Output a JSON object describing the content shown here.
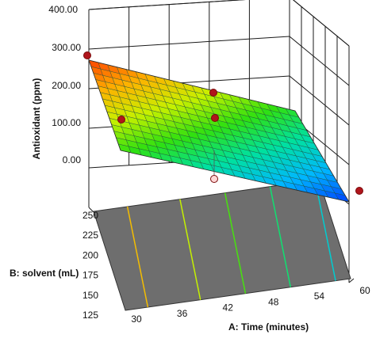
{
  "chart_data": {
    "type": "surface3d",
    "zlabel": "Antioxidant (ppm)",
    "xlabel": "A: Time (minutes)",
    "ylabel": "B: solvent (mL)",
    "z_ticks": [
      "0.00",
      "100.00",
      "200.00",
      "300.00",
      "400.00"
    ],
    "z_range": [
      0,
      400
    ],
    "x_ticks": [
      "30",
      "36",
      "42",
      "48",
      "54",
      "60"
    ],
    "x_range": [
      30,
      60
    ],
    "y_ticks": [
      "125",
      "150",
      "175",
      "200",
      "225",
      "250"
    ],
    "y_range": [
      125,
      250
    ],
    "surface_corners": [
      {
        "x": 30,
        "y": 125,
        "z": 100
      },
      {
        "x": 30,
        "y": 250,
        "z": 270
      },
      {
        "x": 60,
        "y": 125,
        "z": -80
      },
      {
        "x": 60,
        "y": 250,
        "z": 80
      }
    ],
    "contour_lines_x": [
      33,
      40,
      46,
      52,
      58
    ],
    "design_points": [
      {
        "x": 30,
        "y": 250,
        "z": 280,
        "position": "above"
      },
      {
        "x": 30,
        "y": 125,
        "z": 105,
        "position": "above"
      },
      {
        "x": 45,
        "y": 187.5,
        "z": 190,
        "position": "above"
      },
      {
        "x": 45,
        "y": 187.5,
        "z": 110,
        "position": "above"
      },
      {
        "x": 45,
        "y": 187.5,
        "z": -60,
        "position": "below"
      },
      {
        "x": 60,
        "y": 125,
        "z": -80,
        "position": "above"
      }
    ],
    "floor_color": "#6e6e6e",
    "gradient": [
      "#0040ff",
      "#00b7ff",
      "#00e0a0",
      "#30e010",
      "#c8f000",
      "#ffb000",
      "#ff4000"
    ]
  }
}
